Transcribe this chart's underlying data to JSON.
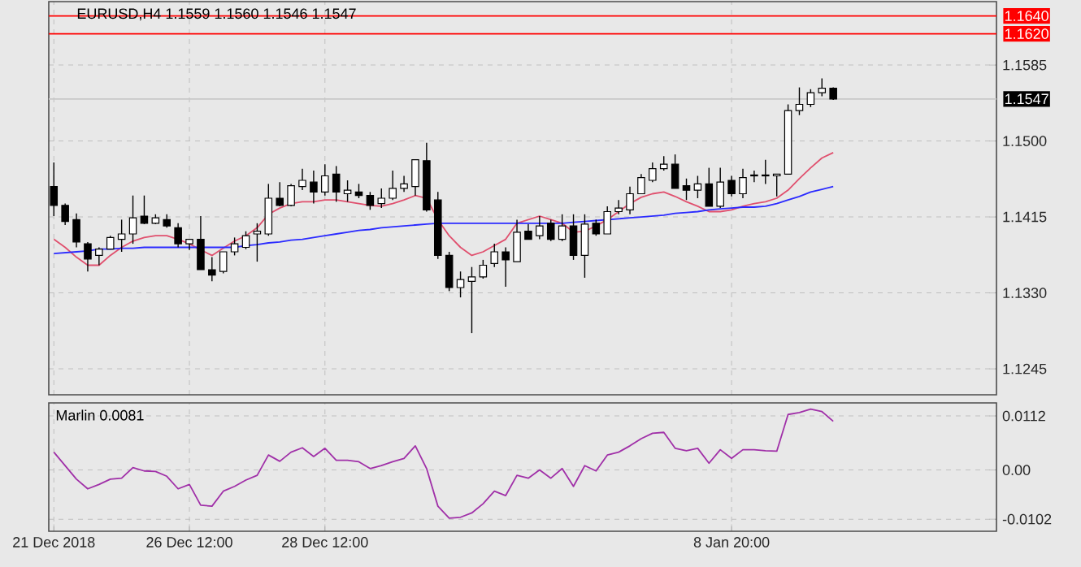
{
  "chart_data": [
    {
      "type": "candlestick",
      "title": "EURUSD,H4  1.1559 1.1560 1.1546 1.1547",
      "categories": [
        null,
        null,
        null,
        null,
        null,
        null,
        null,
        null,
        null,
        null,
        null,
        null,
        null,
        null,
        null,
        null,
        null,
        null,
        null,
        null,
        null,
        null,
        null,
        null,
        null,
        null,
        null,
        null,
        null,
        null,
        null,
        null,
        null,
        null,
        null,
        null,
        null,
        null,
        null,
        null,
        null,
        null,
        null,
        null,
        null,
        null,
        null,
        null,
        null,
        null,
        null,
        null,
        null,
        null,
        null,
        null,
        null,
        null,
        null,
        null,
        null,
        null,
        null,
        null,
        null,
        null,
        null,
        null,
        null,
        null,
        null,
        null,
        null,
        null,
        null,
        null,
        null,
        null,
        null,
        null,
        null,
        null,
        null,
        null
      ],
      "ohlc": [
        [
          1.1449,
          1.1476,
          1.1416,
          1.1428
        ],
        [
          1.1428,
          1.143,
          1.1406,
          1.141
        ],
        [
          1.1412,
          1.1419,
          1.1381,
          1.1387
        ],
        [
          1.1385,
          1.1387,
          1.1354,
          1.1368
        ],
        [
          1.1372,
          1.1381,
          1.1361,
          1.1379
        ],
        [
          1.1379,
          1.1394,
          1.1379,
          1.1392
        ],
        [
          1.139,
          1.1412,
          1.1376,
          1.1396
        ],
        [
          1.1396,
          1.1439,
          1.1385,
          1.1414
        ],
        [
          1.1416,
          1.1439,
          1.1407,
          1.1408
        ],
        [
          1.1408,
          1.1418,
          1.1407,
          1.1414
        ],
        [
          1.1412,
          1.1418,
          1.1403,
          1.1405
        ],
        [
          1.1403,
          1.1408,
          1.1381,
          1.1385
        ],
        [
          1.1385,
          1.139,
          1.1378,
          1.139
        ],
        [
          1.139,
          1.1416,
          1.1356,
          1.1356
        ],
        [
          1.1356,
          1.137,
          1.1343,
          1.135
        ],
        [
          1.1354,
          1.1376,
          1.1352,
          1.1376
        ],
        [
          1.1376,
          1.1392,
          1.1372,
          1.1385
        ],
        [
          1.1381,
          1.1399,
          1.1379,
          1.1394
        ],
        [
          1.1396,
          1.1408,
          1.1365,
          1.1399
        ],
        [
          1.1396,
          1.1452,
          1.1394,
          1.1436
        ],
        [
          1.1436,
          1.1454,
          1.1427,
          1.1428
        ],
        [
          1.1428,
          1.1452,
          1.1427,
          1.145
        ],
        [
          1.1449,
          1.1469,
          1.1445,
          1.1456
        ],
        [
          1.1454,
          1.1467,
          1.143,
          1.1443
        ],
        [
          1.1443,
          1.1474,
          1.1439,
          1.1461
        ],
        [
          1.1463,
          1.1472,
          1.1432,
          1.1443
        ],
        [
          1.1441,
          1.1456,
          1.1432,
          1.1445
        ],
        [
          1.1443,
          1.1452,
          1.1436,
          1.1439
        ],
        [
          1.1439,
          1.1443,
          1.1423,
          1.1428
        ],
        [
          1.143,
          1.1447,
          1.1425,
          1.1436
        ],
        [
          1.1436,
          1.1467,
          1.1434,
          1.1447
        ],
        [
          1.1447,
          1.1461,
          1.1443,
          1.1452
        ],
        [
          1.1449,
          1.1479,
          1.1439,
          1.1479
        ],
        [
          1.1478,
          1.1498,
          1.1421,
          1.1423
        ],
        [
          1.1434,
          1.1443,
          1.1368,
          1.1372
        ],
        [
          1.1372,
          1.1376,
          1.1332,
          1.1336
        ],
        [
          1.1336,
          1.1354,
          1.1325,
          1.1345
        ],
        [
          1.1343,
          1.1359,
          1.1285,
          1.1348
        ],
        [
          1.1348,
          1.1367,
          1.1346,
          1.1361
        ],
        [
          1.1363,
          1.1385,
          1.1359,
          1.1376
        ],
        [
          1.1376,
          1.1381,
          1.1337,
          1.1367
        ],
        [
          1.1365,
          1.1412,
          1.1365,
          1.1398
        ],
        [
          1.1399,
          1.1407,
          1.139,
          1.139
        ],
        [
          1.1394,
          1.1416,
          1.139,
          1.1405
        ],
        [
          1.1408,
          1.1412,
          1.1388,
          1.139
        ],
        [
          1.139,
          1.1418,
          1.1388,
          1.1405
        ],
        [
          1.1405,
          1.1418,
          1.1367,
          1.1372
        ],
        [
          1.1372,
          1.1418,
          1.1347,
          1.1407
        ],
        [
          1.1408,
          1.1412,
          1.1394,
          1.1396
        ],
        [
          1.1396,
          1.1427,
          1.1396,
          1.1421
        ],
        [
          1.1421,
          1.1434,
          1.1418,
          1.1425
        ],
        [
          1.1423,
          1.1449,
          1.1418,
          1.1441
        ],
        [
          1.1441,
          1.1463,
          1.1441,
          1.1459
        ],
        [
          1.1456,
          1.1476,
          1.1454,
          1.1469
        ],
        [
          1.1469,
          1.1483,
          1.1467,
          1.1474
        ],
        [
          1.1474,
          1.1485,
          1.1447,
          1.1447
        ],
        [
          1.145,
          1.1458,
          1.1434,
          1.1445
        ],
        [
          1.1445,
          1.1461,
          1.1436,
          1.1452
        ],
        [
          1.1452,
          1.147,
          1.1427,
          1.1427
        ],
        [
          1.1427,
          1.147,
          1.1425,
          1.1454
        ],
        [
          1.1456,
          1.1461,
          1.1438,
          1.1441
        ],
        [
          1.1441,
          1.1469,
          1.1436,
          1.1459
        ],
        [
          1.1461,
          1.1467,
          1.1454,
          1.1462
        ],
        [
          1.1461,
          1.1479,
          1.1452,
          1.1462
        ],
        [
          1.1461,
          1.1463,
          1.1438,
          1.1463
        ],
        [
          1.1463,
          1.1541,
          1.1463,
          1.1534
        ],
        [
          1.1534,
          1.156,
          1.1529,
          1.1541
        ],
        [
          1.1541,
          1.1558,
          1.1538,
          1.1554
        ],
        [
          1.1554,
          1.157,
          1.155,
          1.1559
        ],
        [
          1.1559,
          1.156,
          1.1546,
          1.1547
        ],
        null,
        null,
        null,
        null,
        null,
        null,
        null,
        null,
        null,
        null,
        null,
        null,
        null,
        null
      ],
      "series": [
        {
          "type": "line",
          "color": "#e0506e",
          "values": [
            1.139,
            1.1381,
            1.137,
            1.1361,
            1.1361,
            1.1372,
            1.1381,
            1.1388,
            1.1392,
            1.1394,
            1.1394,
            1.139,
            1.1385,
            1.1378,
            1.1372,
            1.138,
            1.1388,
            1.1394,
            1.1403,
            1.1418,
            1.1425,
            1.143,
            1.1432,
            1.1432,
            1.1434,
            1.1434,
            1.1432,
            1.143,
            1.1428,
            1.1427,
            1.143,
            1.1434,
            1.1439,
            1.1436,
            1.1412,
            1.1394,
            1.1381,
            1.1372,
            1.1376,
            1.1383,
            1.139,
            1.1408,
            1.1412,
            1.1416,
            1.1412,
            1.1408,
            1.1398,
            1.1399,
            1.1405,
            1.1412,
            1.1421,
            1.143,
            1.1437,
            1.1441,
            1.1443,
            1.1438,
            1.1432,
            1.1427,
            1.1421,
            1.1421,
            1.1423,
            1.1427,
            1.143,
            1.1432,
            1.1436,
            1.1445,
            1.1458,
            1.147,
            1.1481,
            1.1487,
            null,
            null,
            null,
            null,
            null,
            null,
            null,
            null,
            null,
            null,
            null,
            null,
            null,
            null
          ]
        },
        {
          "type": "line",
          "color": "#2a2aff",
          "values": [
            1.1374,
            1.1375,
            1.1376,
            1.1377,
            1.1379,
            1.1379,
            1.138,
            1.138,
            1.1381,
            1.1381,
            1.1381,
            1.1381,
            1.1381,
            1.1381,
            1.1381,
            1.1381,
            1.1381,
            1.1383,
            1.1384,
            1.1386,
            1.1387,
            1.1389,
            1.139,
            1.1392,
            1.1394,
            1.1396,
            1.1398,
            1.14,
            1.1401,
            1.1403,
            1.1404,
            1.1405,
            1.1406,
            1.1407,
            1.1408,
            1.1408,
            1.1408,
            1.1408,
            1.1408,
            1.1408,
            1.1408,
            1.1408,
            1.1408,
            1.1408,
            1.1408,
            1.1408,
            1.1409,
            1.141,
            1.1411,
            1.1412,
            1.1413,
            1.1414,
            1.1415,
            1.1416,
            1.1417,
            1.1419,
            1.142,
            1.1421,
            1.1423,
            1.1424,
            1.1425,
            1.1426,
            1.1426,
            1.1427,
            1.143,
            1.1434,
            1.1438,
            1.1443,
            1.1446,
            1.1449,
            null,
            null,
            null,
            null,
            null,
            null,
            null,
            null,
            null,
            null,
            null,
            null,
            null,
            null
          ]
        }
      ],
      "ylim": [
        1.1216,
        1.1656
      ],
      "yticks": [
        1.1245,
        {
          "value": 1.133,
          "label": "1.1330"
        },
        1.1415,
        {
          "value": 1.15,
          "label": "1.1500"
        },
        1.1585
      ],
      "ref_lines": [
        {
          "axis": "y",
          "value": 1.164,
          "label": "1.1640",
          "color": "#ff0000"
        },
        {
          "axis": "y",
          "value": 1.162,
          "label": "1.1620",
          "color": "#ff0000"
        },
        {
          "axis": "y",
          "value": 1.1547,
          "label": "1.1547",
          "color": "#c8c8c8"
        }
      ],
      "grid": true,
      "tick_labels": "y"
    },
    {
      "type": "line",
      "title": "Marlin 0.0081",
      "categories": [
        "21 Dec 2018",
        null,
        null,
        null,
        null,
        null,
        null,
        null,
        null,
        null,
        null,
        null,
        "26 Dec 12:00",
        null,
        null,
        null,
        null,
        null,
        null,
        null,
        null,
        null,
        null,
        null,
        "28 Dec 12:00",
        null,
        null,
        null,
        null,
        null,
        null,
        null,
        null,
        null,
        null,
        null,
        null,
        null,
        null,
        null,
        null,
        null,
        null,
        null,
        null,
        null,
        null,
        null,
        null,
        null,
        null,
        null,
        null,
        null,
        null,
        null,
        null,
        null,
        null,
        null,
        "8 Jan 20:00",
        null,
        null,
        null,
        null,
        null,
        null,
        null,
        null,
        null,
        null,
        null,
        null,
        null,
        null,
        null,
        null,
        null,
        null,
        null,
        null,
        null,
        null,
        null
      ],
      "series": [
        {
          "color": "#a030a8",
          "values": [
            0.0037,
            0.0009,
            -0.0019,
            -0.0039,
            -0.003,
            -0.0019,
            -0.0017,
            0.0005,
            -0.0002,
            -0.0003,
            -0.0013,
            -0.0039,
            -0.003,
            -0.0073,
            -0.0075,
            -0.0044,
            -0.0034,
            -0.0021,
            -0.0011,
            0.0031,
            0.0018,
            0.0037,
            0.0046,
            0.0028,
            0.0045,
            0.002,
            0.002,
            0.0017,
            0.0003,
            0.0009,
            0.0017,
            0.0024,
            0.005,
            0.0003,
            -0.0075,
            -0.01,
            -0.0098,
            -0.0089,
            -0.007,
            -0.0044,
            -0.0053,
            -0.0011,
            -0.0017,
            0.0,
            -0.0017,
            0.0003,
            -0.0034,
            0.0009,
            -0.0002,
            0.0031,
            0.0037,
            0.005,
            0.0065,
            0.0076,
            0.0078,
            0.0045,
            0.004,
            0.0045,
            0.0014,
            0.0042,
            0.0024,
            0.0042,
            0.0042,
            0.004,
            0.0039,
            0.0115,
            0.0119,
            0.0126,
            0.0121,
            0.0101,
            null,
            null,
            null,
            null,
            null,
            null,
            null,
            null,
            null,
            null,
            null,
            null,
            null,
            null
          ]
        }
      ],
      "ylim": [
        -0.0127,
        0.0139
      ],
      "yticks": [
        0.0112,
        {
          "value": 0,
          "label": "0.00"
        },
        -0.0102
      ],
      "grid": true
    }
  ]
}
